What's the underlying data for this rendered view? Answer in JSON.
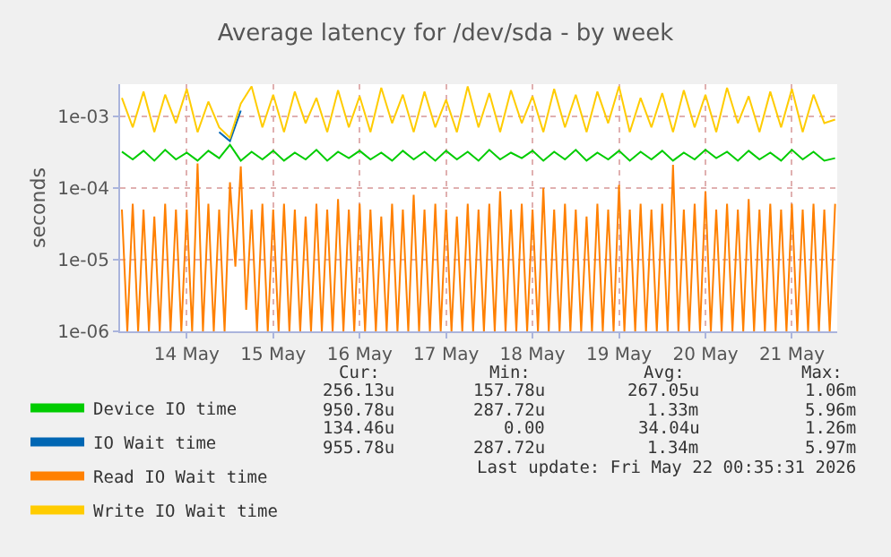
{
  "chart_data": {
    "type": "line",
    "title": "Average latency for /dev/sda - by week",
    "ylabel": "seconds",
    "log": "y",
    "grid": true,
    "legend": "bottom",
    "xlim": [
      "2026-05-13T17:30",
      "2026-05-22T00:35"
    ],
    "xticks": [
      {
        "value": "2026-05-14T12:00",
        "label": "14 May"
      },
      {
        "value": "2026-05-15T12:00",
        "label": "15 May"
      },
      {
        "value": "2026-05-16T12:00",
        "label": "16 May"
      },
      {
        "value": "2026-05-17T12:00",
        "label": "17 May"
      },
      {
        "value": "2026-05-18T12:00",
        "label": "18 May"
      },
      {
        "value": "2026-05-19T12:00",
        "label": "19 May"
      },
      {
        "value": "2026-05-20T12:00",
        "label": "20 May"
      },
      {
        "value": "2026-05-21T12:00",
        "label": "21 May"
      }
    ],
    "ylim": [
      1e-06,
      0.0028
    ],
    "yticks": [
      {
        "value": 1e-06,
        "label": "1e-06"
      },
      {
        "value": 1e-05,
        "label": "1e-05"
      },
      {
        "value": 0.0001,
        "label": "1e-04"
      },
      {
        "value": 0.001,
        "label": "1e-03"
      }
    ],
    "x": [
      "2026-05-13T18:00",
      "2026-05-13T21:00",
      "2026-05-14T00:00",
      "2026-05-14T03:00",
      "2026-05-14T06:00",
      "2026-05-14T09:00",
      "2026-05-14T12:00",
      "2026-05-14T15:00",
      "2026-05-14T18:00",
      "2026-05-14T21:00",
      "2026-05-15T00:00",
      "2026-05-15T03:00",
      "2026-05-15T06:00",
      "2026-05-15T09:00",
      "2026-05-15T12:00",
      "2026-05-15T15:00",
      "2026-05-15T18:00",
      "2026-05-15T21:00",
      "2026-05-16T00:00",
      "2026-05-16T03:00",
      "2026-05-16T06:00",
      "2026-05-16T09:00",
      "2026-05-16T12:00",
      "2026-05-16T15:00",
      "2026-05-16T18:00",
      "2026-05-16T21:00",
      "2026-05-17T00:00",
      "2026-05-17T03:00",
      "2026-05-17T06:00",
      "2026-05-17T09:00",
      "2026-05-17T12:00",
      "2026-05-17T15:00",
      "2026-05-17T18:00",
      "2026-05-17T21:00",
      "2026-05-18T00:00",
      "2026-05-18T03:00",
      "2026-05-18T06:00",
      "2026-05-18T09:00",
      "2026-05-18T12:00",
      "2026-05-18T15:00",
      "2026-05-18T18:00",
      "2026-05-18T21:00",
      "2026-05-19T00:00",
      "2026-05-19T03:00",
      "2026-05-19T06:00",
      "2026-05-19T09:00",
      "2026-05-19T12:00",
      "2026-05-19T15:00",
      "2026-05-19T18:00",
      "2026-05-19T21:00",
      "2026-05-20T00:00",
      "2026-05-20T03:00",
      "2026-05-20T06:00",
      "2026-05-20T09:00",
      "2026-05-20T12:00",
      "2026-05-20T15:00",
      "2026-05-20T18:00",
      "2026-05-20T21:00",
      "2026-05-21T00:00",
      "2026-05-21T03:00",
      "2026-05-21T06:00",
      "2026-05-21T09:00",
      "2026-05-21T12:00",
      "2026-05-21T15:00",
      "2026-05-21T18:00",
      "2026-05-21T21:00",
      "2026-05-22T00:00"
    ],
    "series": [
      {
        "name": "Device IO time",
        "color": "#00cc00",
        "values": [
          0.00032,
          0.00025,
          0.00033,
          0.00024,
          0.00034,
          0.00025,
          0.00031,
          0.00024,
          0.00033,
          0.00026,
          0.0004,
          0.00024,
          0.00032,
          0.00025,
          0.00033,
          0.00024,
          0.00031,
          0.00025,
          0.00034,
          0.00024,
          0.00032,
          0.00026,
          0.00033,
          0.00025,
          0.00031,
          0.00024,
          0.00033,
          0.00025,
          0.00032,
          0.00024,
          0.00033,
          0.00025,
          0.00032,
          0.00024,
          0.00034,
          0.00025,
          0.00031,
          0.00026,
          0.00033,
          0.00024,
          0.00032,
          0.00025,
          0.00034,
          0.00024,
          0.00031,
          0.00025,
          0.00033,
          0.00024,
          0.00032,
          0.00025,
          0.00033,
          0.00024,
          0.00031,
          0.00025,
          0.00034,
          0.00026,
          0.00032,
          0.00024,
          0.00033,
          0.00025,
          0.00031,
          0.00024,
          0.00034,
          0.00025,
          0.00032,
          0.00024,
          0.00026
        ]
      },
      {
        "name": "IO Wait time",
        "color": "#0066b3",
        "values": [
          null,
          null,
          null,
          null,
          null,
          null,
          null,
          null,
          null,
          0.0006,
          0.00045,
          0.0012,
          null,
          null,
          null,
          null,
          null,
          null,
          null,
          null,
          null,
          null,
          null,
          null,
          null,
          null,
          null,
          null,
          null,
          null,
          null,
          null,
          null,
          null,
          null,
          null,
          null,
          null,
          null,
          null,
          null,
          null,
          null,
          null,
          null,
          null,
          null,
          null,
          null,
          null,
          null,
          null,
          null,
          null,
          null,
          null,
          null,
          null,
          null,
          null,
          null,
          null,
          null,
          null,
          null,
          null,
          null
        ]
      },
      {
        "name": "Read IO Wait time",
        "color": "#ff8000",
        "x": [
          "2026-05-13T18:00",
          "2026-05-13T19:30",
          "2026-05-13T21:00",
          "2026-05-13T22:30",
          "2026-05-14T00:00",
          "2026-05-14T01:30",
          "2026-05-14T03:00",
          "2026-05-14T04:30",
          "2026-05-14T06:00",
          "2026-05-14T07:30",
          "2026-05-14T09:00",
          "2026-05-14T10:30",
          "2026-05-14T12:00",
          "2026-05-14T13:30",
          "2026-05-14T15:00",
          "2026-05-14T16:30",
          "2026-05-14T18:00",
          "2026-05-14T19:30",
          "2026-05-14T21:00",
          "2026-05-14T22:30",
          "2026-05-15T00:00",
          "2026-05-15T01:30",
          "2026-05-15T03:00",
          "2026-05-15T04:30",
          "2026-05-15T06:00",
          "2026-05-15T07:30",
          "2026-05-15T09:00",
          "2026-05-15T10:30",
          "2026-05-15T12:00",
          "2026-05-15T13:30",
          "2026-05-15T15:00",
          "2026-05-15T16:30",
          "2026-05-15T18:00",
          "2026-05-15T19:30",
          "2026-05-15T21:00",
          "2026-05-15T22:30",
          "2026-05-16T00:00",
          "2026-05-16T01:30",
          "2026-05-16T03:00",
          "2026-05-16T04:30",
          "2026-05-16T06:00",
          "2026-05-16T07:30",
          "2026-05-16T09:00",
          "2026-05-16T10:30",
          "2026-05-16T12:00",
          "2026-05-16T13:30",
          "2026-05-16T15:00",
          "2026-05-16T16:30",
          "2026-05-16T18:00",
          "2026-05-16T19:30",
          "2026-05-16T21:00",
          "2026-05-16T22:30",
          "2026-05-17T00:00",
          "2026-05-17T01:30",
          "2026-05-17T03:00",
          "2026-05-17T04:30",
          "2026-05-17T06:00",
          "2026-05-17T07:30",
          "2026-05-17T09:00",
          "2026-05-17T10:30",
          "2026-05-17T12:00",
          "2026-05-17T13:30",
          "2026-05-17T15:00",
          "2026-05-17T16:30",
          "2026-05-17T18:00",
          "2026-05-17T19:30",
          "2026-05-17T21:00",
          "2026-05-17T22:30",
          "2026-05-18T00:00",
          "2026-05-18T01:30",
          "2026-05-18T03:00",
          "2026-05-18T04:30",
          "2026-05-18T06:00",
          "2026-05-18T07:30",
          "2026-05-18T09:00",
          "2026-05-18T10:30",
          "2026-05-18T12:00",
          "2026-05-18T13:30",
          "2026-05-18T15:00",
          "2026-05-18T16:30",
          "2026-05-18T18:00",
          "2026-05-18T19:30",
          "2026-05-18T21:00",
          "2026-05-18T22:30",
          "2026-05-19T00:00",
          "2026-05-19T01:30",
          "2026-05-19T03:00",
          "2026-05-19T04:30",
          "2026-05-19T06:00",
          "2026-05-19T07:30",
          "2026-05-19T09:00",
          "2026-05-19T10:30",
          "2026-05-19T12:00",
          "2026-05-19T13:30",
          "2026-05-19T15:00",
          "2026-05-19T16:30",
          "2026-05-19T18:00",
          "2026-05-19T19:30",
          "2026-05-19T21:00",
          "2026-05-19T22:30",
          "2026-05-20T00:00",
          "2026-05-20T01:30",
          "2026-05-20T03:00",
          "2026-05-20T04:30",
          "2026-05-20T06:00",
          "2026-05-20T07:30",
          "2026-05-20T09:00",
          "2026-05-20T10:30",
          "2026-05-20T12:00",
          "2026-05-20T13:30",
          "2026-05-20T15:00",
          "2026-05-20T16:30",
          "2026-05-20T18:00",
          "2026-05-20T19:30",
          "2026-05-20T21:00",
          "2026-05-20T22:30",
          "2026-05-21T00:00",
          "2026-05-21T01:30",
          "2026-05-21T03:00",
          "2026-05-21T04:30",
          "2026-05-21T06:00",
          "2026-05-21T07:30",
          "2026-05-21T09:00",
          "2026-05-21T10:30",
          "2026-05-21T12:00",
          "2026-05-21T13:30",
          "2026-05-21T15:00",
          "2026-05-21T16:30",
          "2026-05-21T18:00",
          "2026-05-21T19:30",
          "2026-05-21T21:00",
          "2026-05-21T22:30",
          "2026-05-22T00:00"
        ],
        "values": [
          5e-05,
          1e-06,
          6e-05,
          1e-06,
          5e-05,
          1e-06,
          4e-05,
          1e-06,
          6e-05,
          1e-06,
          5e-05,
          1e-06,
          5e-05,
          1e-06,
          0.00022,
          1e-06,
          6e-05,
          1e-06,
          5e-05,
          1e-06,
          0.00012,
          8e-06,
          0.0002,
          2e-06,
          5e-05,
          1e-06,
          6e-05,
          1e-06,
          5e-05,
          1e-06,
          6e-05,
          1e-06,
          5e-05,
          1e-06,
          4e-05,
          1e-06,
          6e-05,
          1e-06,
          5e-05,
          1e-06,
          7e-05,
          1e-06,
          5e-05,
          1e-06,
          6e-05,
          1e-06,
          5e-05,
          1e-06,
          4e-05,
          1e-06,
          6e-05,
          1e-06,
          5e-05,
          1e-06,
          8e-05,
          1e-06,
          5e-05,
          1e-06,
          6e-05,
          1e-06,
          5e-05,
          1e-06,
          4e-05,
          1e-06,
          6e-05,
          1e-06,
          5e-05,
          1e-06,
          6e-05,
          1e-06,
          9e-05,
          1e-06,
          5e-05,
          1e-06,
          6e-05,
          1e-06,
          5e-05,
          1e-06,
          0.0001,
          1e-06,
          5e-05,
          1e-06,
          6e-05,
          1e-06,
          5e-05,
          1e-06,
          4e-05,
          1e-06,
          6e-05,
          1e-06,
          5e-05,
          1e-06,
          0.00011,
          1e-06,
          5e-05,
          1e-06,
          6e-05,
          1e-06,
          5e-05,
          1e-06,
          6e-05,
          1e-06,
          0.00021,
          1e-06,
          5e-05,
          1e-06,
          6e-05,
          1e-06,
          9e-05,
          1e-06,
          5e-05,
          1e-06,
          6e-05,
          1e-06,
          5e-05,
          1e-06,
          7e-05,
          1e-06,
          5e-05,
          1e-06,
          6e-05,
          1e-06,
          5e-05,
          1e-06,
          6e-05,
          1e-06,
          5e-05,
          1e-06,
          6e-05,
          1e-06,
          5e-05,
          1e-06,
          6e-05
        ]
      },
      {
        "name": "Write IO Wait time",
        "color": "#ffcc00",
        "values": [
          0.0018,
          0.0007,
          0.0022,
          0.0006,
          0.002,
          0.0008,
          0.0024,
          0.0006,
          0.0016,
          0.0007,
          0.0005,
          0.0015,
          0.0026,
          0.0007,
          0.002,
          0.0006,
          0.0022,
          0.0008,
          0.0018,
          0.0006,
          0.0023,
          0.0007,
          0.0019,
          0.0006,
          0.0025,
          0.0008,
          0.002,
          0.0006,
          0.0022,
          0.0007,
          0.0017,
          0.0006,
          0.0026,
          0.0007,
          0.0021,
          0.0006,
          0.0023,
          0.0008,
          0.0019,
          0.0006,
          0.0024,
          0.0007,
          0.002,
          0.0006,
          0.0022,
          0.0008,
          0.0026,
          0.0006,
          0.0018,
          0.0007,
          0.0021,
          0.0006,
          0.0023,
          0.0007,
          0.002,
          0.0006,
          0.0025,
          0.0008,
          0.0019,
          0.0006,
          0.0022,
          0.0007,
          0.0024,
          0.0006,
          0.002,
          0.0008,
          0.0009
        ]
      }
    ],
    "annotations": [
      "Cur:",
      "Min:",
      "Avg:",
      "Max:",
      "256.13u",
      "157.78u",
      "267.05u",
      "1.06m",
      "950.78u",
      "287.72u",
      "1.33m",
      "5.96m",
      "134.46u",
      "0.00",
      "34.04u",
      "1.26m",
      "955.78u",
      "287.72u",
      "1.34m",
      "5.97m",
      "Last update: Fri May 22 00:35:31 2026"
    ]
  }
}
